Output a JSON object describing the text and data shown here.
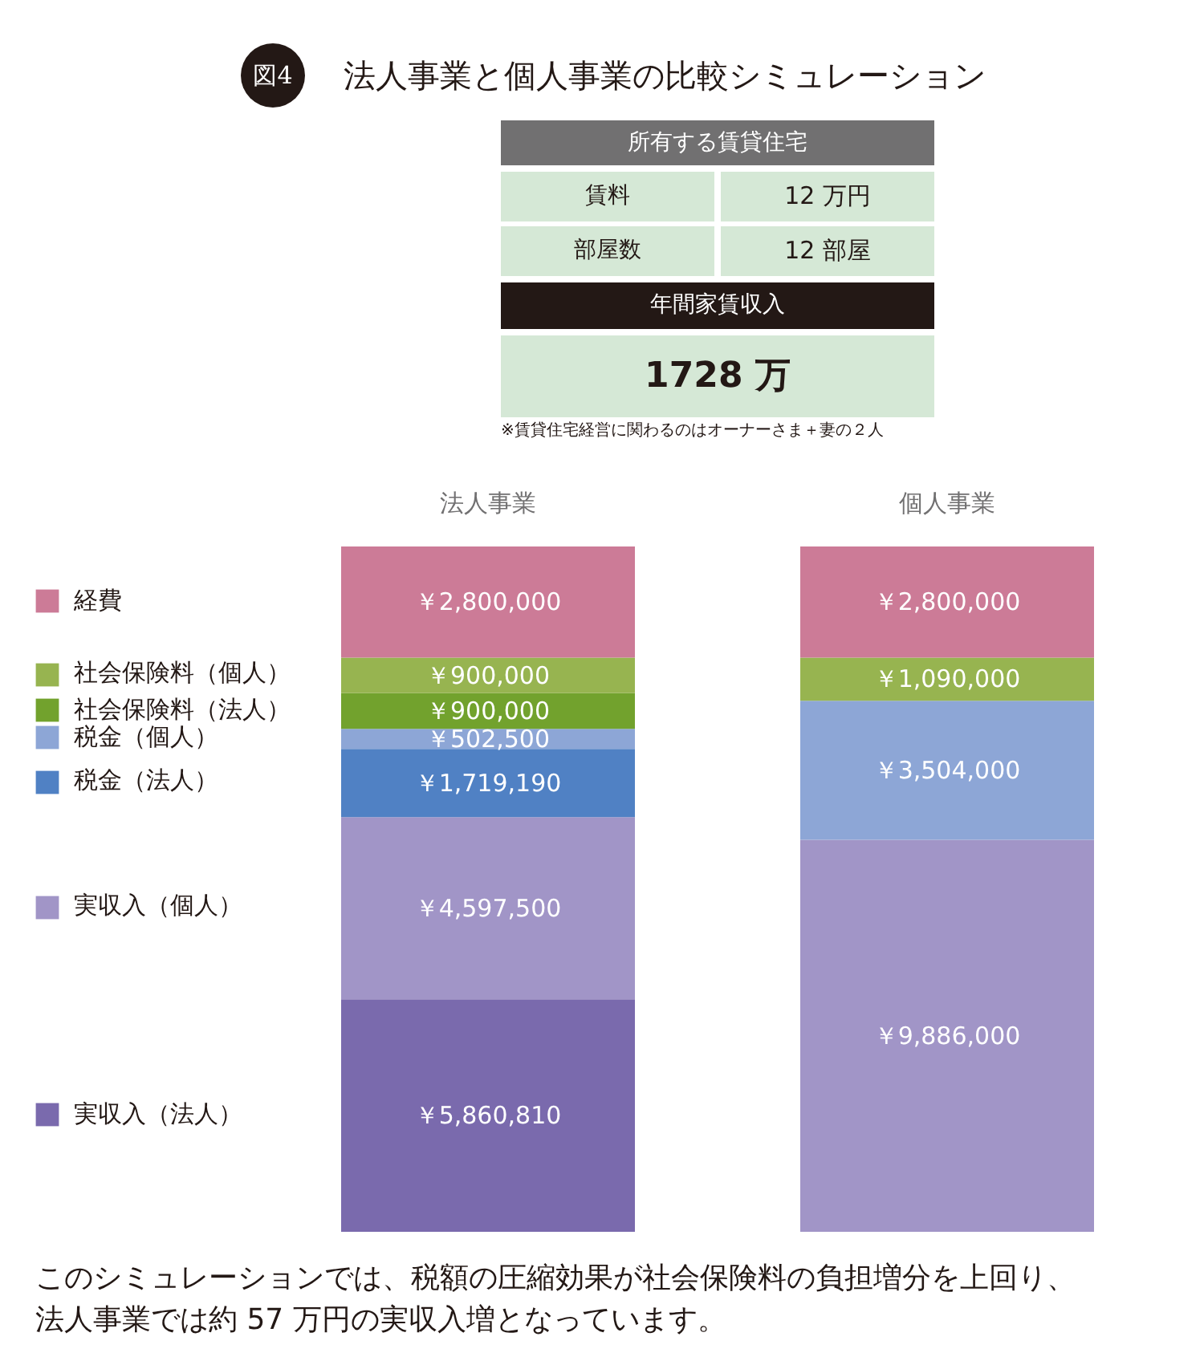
{
  "chart_data": {
    "type": "bar",
    "stacked": true,
    "title": "法人事業と個人事業の比較シミュレーション",
    "categories": [
      "法人事業",
      "個人事業"
    ],
    "series": [
      {
        "name": "実収入（法人）",
        "color": "#7a6aad",
        "values": [
          5860810,
          null
        ],
        "value_labels": [
          "￥5,860,810",
          null
        ]
      },
      {
        "name": "実収入（個人）",
        "color": "#a195c7",
        "values": [
          4597500,
          9886000
        ],
        "value_labels": [
          "￥4,597,500",
          "￥9,886,000"
        ]
      },
      {
        "name": "税金（法人）",
        "color": "#5081c4",
        "values": [
          1719190,
          null
        ],
        "value_labels": [
          "￥1,719,190",
          null
        ]
      },
      {
        "name": "税金（個人）",
        "color": "#8da6d6",
        "values": [
          502500,
          3504000
        ],
        "value_labels": [
          "￥502,500",
          "￥3,504,000"
        ]
      },
      {
        "name": "社会保険料（法人）",
        "color": "#72a22d",
        "values": [
          900000,
          null
        ],
        "value_labels": [
          "￥900,000",
          null
        ]
      },
      {
        "name": "社会保険料（個人）",
        "color": "#97b450",
        "values": [
          900000,
          1090000
        ],
        "value_labels": [
          "￥900,000",
          "￥1,090,000"
        ]
      },
      {
        "name": "経費",
        "color": "#cc7b97",
        "values": [
          2800000,
          2800000
        ],
        "value_labels": [
          "￥2,800,000",
          "￥2,800,000"
        ]
      }
    ],
    "legend": "left",
    "tick_labels": "x",
    "annotations": [
      "図4",
      "所有する賃貸住宅",
      "賃料",
      "12 万円",
      "部屋数",
      "12 部屋",
      "年間家賃収入",
      "1728 万",
      "※賃貸住宅経営に関わるのはオーナーさま＋妻の２人",
      "このシミュレーションでは、税額の圧縮効果が社会保険料の負担増分を上回り、法人事業では約 57 万円の実収入増となっています。"
    ]
  }
}
